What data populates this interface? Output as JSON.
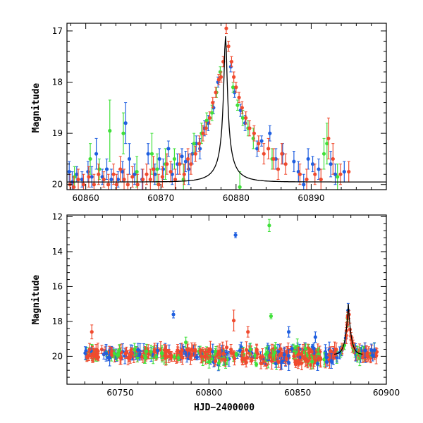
{
  "colors": {
    "blue": "#1f5fe0",
    "green": "#40e03a",
    "red": "#f04a2e",
    "model": "#000000"
  },
  "chart_data": [
    {
      "type": "scatter",
      "panel": "top",
      "xlabel": "",
      "ylabel": "Magnitude",
      "xlim": [
        60857.5,
        60900
      ],
      "ylim": [
        20.1,
        16.85
      ],
      "y_inverted": true,
      "xticks": [
        60860,
        60870,
        60880,
        60890
      ],
      "yticks": [
        17,
        18,
        19,
        20
      ],
      "model_curve": {
        "t0": 60878.6,
        "peak_mag": 17.1,
        "base_mag": 19.95,
        "tE": 3.0,
        "u0": 0.075
      },
      "series": [
        {
          "color": "blue",
          "points": [
            [
              60857.8,
              19.75,
              0.2
            ],
            [
              60858.2,
              19.95,
              0.2
            ],
            [
              60858.8,
              19.8,
              0.15
            ],
            [
              60859.5,
              19.9,
              0.15
            ],
            [
              60860.3,
              19.75,
              0.2
            ],
            [
              60860.8,
              19.85,
              0.2
            ],
            [
              60861.4,
              19.4,
              0.3
            ],
            [
              60862.2,
              19.85,
              0.15
            ],
            [
              60862.8,
              19.7,
              0.2
            ],
            [
              60863.4,
              19.9,
              0.2
            ],
            [
              60864.3,
              19.9,
              0.15
            ],
            [
              60864.9,
              19.75,
              0.2
            ],
            [
              60865.3,
              18.8,
              0.4
            ],
            [
              60865.8,
              19.5,
              0.3
            ],
            [
              60866.5,
              19.8,
              0.2
            ],
            [
              60867.5,
              19.9,
              0.2
            ],
            [
              60868.3,
              19.4,
              0.2
            ],
            [
              60869.2,
              19.8,
              0.2
            ],
            [
              60869.8,
              19.5,
              0.2
            ],
            [
              60870.3,
              19.7,
              0.2
            ],
            [
              60871.0,
              19.3,
              0.15
            ],
            [
              60871.5,
              19.8,
              0.2
            ],
            [
              60872.2,
              19.6,
              0.2
            ],
            [
              60872.8,
              19.45,
              0.15
            ],
            [
              60873.3,
              19.55,
              0.2
            ],
            [
              60873.7,
              19.7,
              0.3
            ],
            [
              60874.2,
              19.4,
              0.2
            ],
            [
              60874.7,
              19.2,
              0.15
            ],
            [
              60875.2,
              19.3,
              0.2
            ],
            [
              60875.8,
              18.9,
              0.15
            ],
            [
              60876.3,
              18.8,
              0.15
            ],
            [
              60877.0,
              18.5,
              0.12
            ],
            [
              60877.6,
              18.0,
              0.1
            ],
            [
              60879.3,
              17.7,
              0.1
            ],
            [
              60879.8,
              18.2,
              0.1
            ],
            [
              60880.6,
              18.55,
              0.12
            ],
            [
              60881.2,
              18.8,
              0.15
            ],
            [
              60882.8,
              19.3,
              0.15
            ],
            [
              60883.4,
              19.15,
              0.1
            ],
            [
              60884.5,
              19.0,
              0.15
            ],
            [
              60885.3,
              19.5,
              0.2
            ],
            [
              60886.2,
              19.4,
              0.2
            ],
            [
              60887.7,
              19.55,
              0.2
            ],
            [
              60888.3,
              19.75,
              0.2
            ],
            [
              60889.0,
              20.0,
              0.2
            ],
            [
              60889.6,
              19.5,
              0.2
            ],
            [
              60890.2,
              19.6,
              0.15
            ],
            [
              60891.0,
              19.7,
              0.2
            ],
            [
              60892.6,
              19.6,
              0.25
            ],
            [
              60893.2,
              19.8,
              0.2
            ],
            [
              60894.4,
              19.75,
              0.2
            ]
          ]
        },
        {
          "color": "green",
          "points": [
            [
              60858.5,
              19.85,
              0.2
            ],
            [
              60860.6,
              19.5,
              0.3
            ],
            [
              60861.8,
              19.7,
              0.2
            ],
            [
              60863.2,
              18.95,
              0.6
            ],
            [
              60865.0,
              19.0,
              0.4
            ],
            [
              60866.8,
              19.75,
              0.3
            ],
            [
              60868.8,
              19.4,
              0.4
            ],
            [
              60869.5,
              19.7,
              0.3
            ],
            [
              60870.6,
              19.6,
              0.3
            ],
            [
              60871.8,
              19.5,
              0.2
            ],
            [
              60873.0,
              19.9,
              0.3
            ],
            [
              60874.4,
              19.2,
              0.2
            ],
            [
              60875.4,
              19.0,
              0.2
            ],
            [
              60876.1,
              18.75,
              0.15
            ],
            [
              60876.8,
              18.6,
              0.15
            ],
            [
              60877.4,
              18.2,
              0.1
            ],
            [
              60877.9,
              17.8,
              0.1
            ],
            [
              60879.6,
              18.1,
              0.1
            ],
            [
              60880.2,
              18.45,
              0.1
            ],
            [
              60880.9,
              18.7,
              0.15
            ],
            [
              60881.6,
              18.9,
              0.15
            ],
            [
              60882.3,
              19.1,
              0.2
            ],
            [
              60884.8,
              19.5,
              0.2
            ],
            [
              60891.7,
              19.4,
              0.3
            ],
            [
              60892.1,
              19.2,
              0.4
            ],
            [
              60893.5,
              19.85,
              0.25
            ],
            [
              60880.5,
              20.05,
              0.3
            ]
          ]
        },
        {
          "color": "red",
          "points": [
            [
              60857.9,
              20.0,
              0.2
            ],
            [
              60858.4,
              20.05,
              0.2
            ],
            [
              60859.0,
              19.9,
              0.2
            ],
            [
              60859.7,
              20.0,
              0.2
            ],
            [
              60860.4,
              19.85,
              0.2
            ],
            [
              60861.1,
              20.0,
              0.2
            ],
            [
              60861.7,
              19.8,
              0.2
            ],
            [
              60862.4,
              19.9,
              0.15
            ],
            [
              60863.0,
              20.0,
              0.2
            ],
            [
              60863.7,
              19.8,
              0.2
            ],
            [
              60864.1,
              20.0,
              0.2
            ],
            [
              60864.6,
              19.7,
              0.25
            ],
            [
              60865.1,
              19.9,
              0.2
            ],
            [
              60865.6,
              20.0,
              0.2
            ],
            [
              60866.2,
              19.85,
              0.2
            ],
            [
              60866.9,
              20.0,
              0.2
            ],
            [
              60867.6,
              19.9,
              0.2
            ],
            [
              60868.1,
              19.8,
              0.2
            ],
            [
              60868.6,
              19.9,
              0.2
            ],
            [
              60869.0,
              19.7,
              0.25
            ],
            [
              60869.7,
              20.0,
              0.2
            ],
            [
              60870.2,
              19.85,
              0.2
            ],
            [
              60870.8,
              19.6,
              0.2
            ],
            [
              60871.3,
              19.75,
              0.2
            ],
            [
              60871.9,
              19.9,
              0.2
            ],
            [
              60872.5,
              19.6,
              0.2
            ],
            [
              60873.1,
              19.8,
              0.2
            ],
            [
              60873.6,
              19.5,
              0.2
            ],
            [
              60874.0,
              19.6,
              0.2
            ],
            [
              60874.6,
              19.4,
              0.15
            ],
            [
              60875.1,
              19.2,
              0.15
            ],
            [
              60875.6,
              19.0,
              0.15
            ],
            [
              60876.0,
              18.9,
              0.12
            ],
            [
              60876.5,
              18.7,
              0.12
            ],
            [
              60876.9,
              18.4,
              0.1
            ],
            [
              60877.3,
              18.2,
              0.1
            ],
            [
              60877.7,
              17.95,
              0.1
            ],
            [
              60878.0,
              17.9,
              0.1
            ],
            [
              60878.3,
              17.6,
              0.1
            ],
            [
              60878.7,
              16.95,
              0.1
            ],
            [
              60879.0,
              17.3,
              0.1
            ],
            [
              60879.4,
              17.6,
              0.1
            ],
            [
              60879.7,
              17.9,
              0.1
            ],
            [
              60880.0,
              18.1,
              0.1
            ],
            [
              60880.4,
              18.3,
              0.1
            ],
            [
              60880.8,
              18.5,
              0.12
            ],
            [
              60881.3,
              18.7,
              0.12
            ],
            [
              60881.8,
              18.9,
              0.15
            ],
            [
              60882.4,
              19.0,
              0.15
            ],
            [
              60883.0,
              19.2,
              0.15
            ],
            [
              60883.7,
              19.4,
              0.2
            ],
            [
              60884.3,
              19.3,
              0.2
            ],
            [
              60885.0,
              19.5,
              0.2
            ],
            [
              60885.6,
              19.7,
              0.2
            ],
            [
              60886.1,
              19.4,
              0.2
            ],
            [
              60886.6,
              19.6,
              0.2
            ],
            [
              60888.5,
              19.8,
              0.2
            ],
            [
              60889.4,
              19.9,
              0.2
            ],
            [
              60890.5,
              19.8,
              0.2
            ],
            [
              60891.3,
              19.9,
              0.2
            ],
            [
              60892.3,
              19.1,
              0.4
            ],
            [
              60892.9,
              19.5,
              0.3
            ],
            [
              60893.9,
              19.8,
              0.2
            ],
            [
              60895.0,
              19.75,
              0.2
            ]
          ]
        }
      ]
    },
    {
      "type": "scatter",
      "panel": "bottom",
      "xlabel": "HJD−2400000",
      "ylabel": "Magnitude",
      "xlim": [
        60720,
        60900
      ],
      "ylim": [
        21.6,
        11.9
      ],
      "y_inverted": true,
      "xticks": [
        60750,
        60800,
        60850,
        60900
      ],
      "yticks": [
        12,
        14,
        16,
        18,
        20
      ],
      "outliers": [
        {
          "color": "blue",
          "x": 60815,
          "y": 13.05,
          "err": 0.15
        },
        {
          "color": "green",
          "x": 60834,
          "y": 12.5,
          "err": 0.35
        },
        {
          "color": "blue",
          "x": 60780,
          "y": 17.6,
          "err": 0.2
        },
        {
          "color": "red",
          "x": 60814,
          "y": 17.95,
          "err": 0.6
        },
        {
          "color": "green",
          "x": 60835,
          "y": 17.7,
          "err": 0.15
        },
        {
          "color": "red",
          "x": 60734,
          "y": 18.6,
          "err": 0.4
        },
        {
          "color": "red",
          "x": 60822,
          "y": 18.6,
          "err": 0.3
        },
        {
          "color": "blue",
          "x": 60845,
          "y": 18.6,
          "err": 0.3
        },
        {
          "color": "blue",
          "x": 60860,
          "y": 18.9,
          "err": 0.3
        },
        {
          "color": "green",
          "x": 60787,
          "y": 19.2,
          "err": 0.3
        }
      ],
      "peak": {
        "t0": 60878.6,
        "peak_mag": 17.0
      }
    }
  ]
}
